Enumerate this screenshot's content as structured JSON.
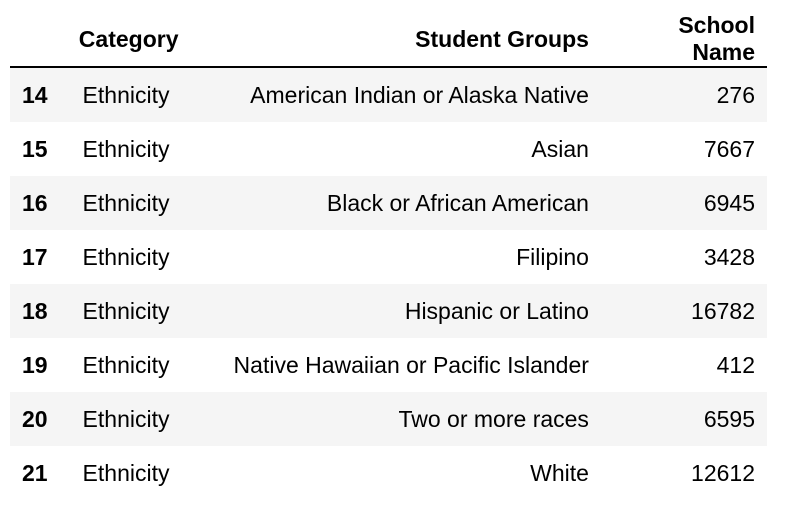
{
  "table": {
    "columns": [
      "Category",
      "Student Groups",
      "School Name"
    ],
    "rows": [
      {
        "index": "14",
        "category": "Ethnicity",
        "student_group": "American Indian or Alaska Native",
        "school_name": "276"
      },
      {
        "index": "15",
        "category": "Ethnicity",
        "student_group": "Asian",
        "school_name": "7667"
      },
      {
        "index": "16",
        "category": "Ethnicity",
        "student_group": "Black or African American",
        "school_name": "6945"
      },
      {
        "index": "17",
        "category": "Ethnicity",
        "student_group": "Filipino",
        "school_name": "3428"
      },
      {
        "index": "18",
        "category": "Ethnicity",
        "student_group": "Hispanic or Latino",
        "school_name": "16782"
      },
      {
        "index": "19",
        "category": "Ethnicity",
        "student_group": "Native Hawaiian or Pacific Islander",
        "school_name": "412"
      },
      {
        "index": "20",
        "category": "Ethnicity",
        "student_group": "Two or more races",
        "school_name": "6595"
      },
      {
        "index": "21",
        "category": "Ethnicity",
        "student_group": "White",
        "school_name": "12612"
      }
    ]
  }
}
